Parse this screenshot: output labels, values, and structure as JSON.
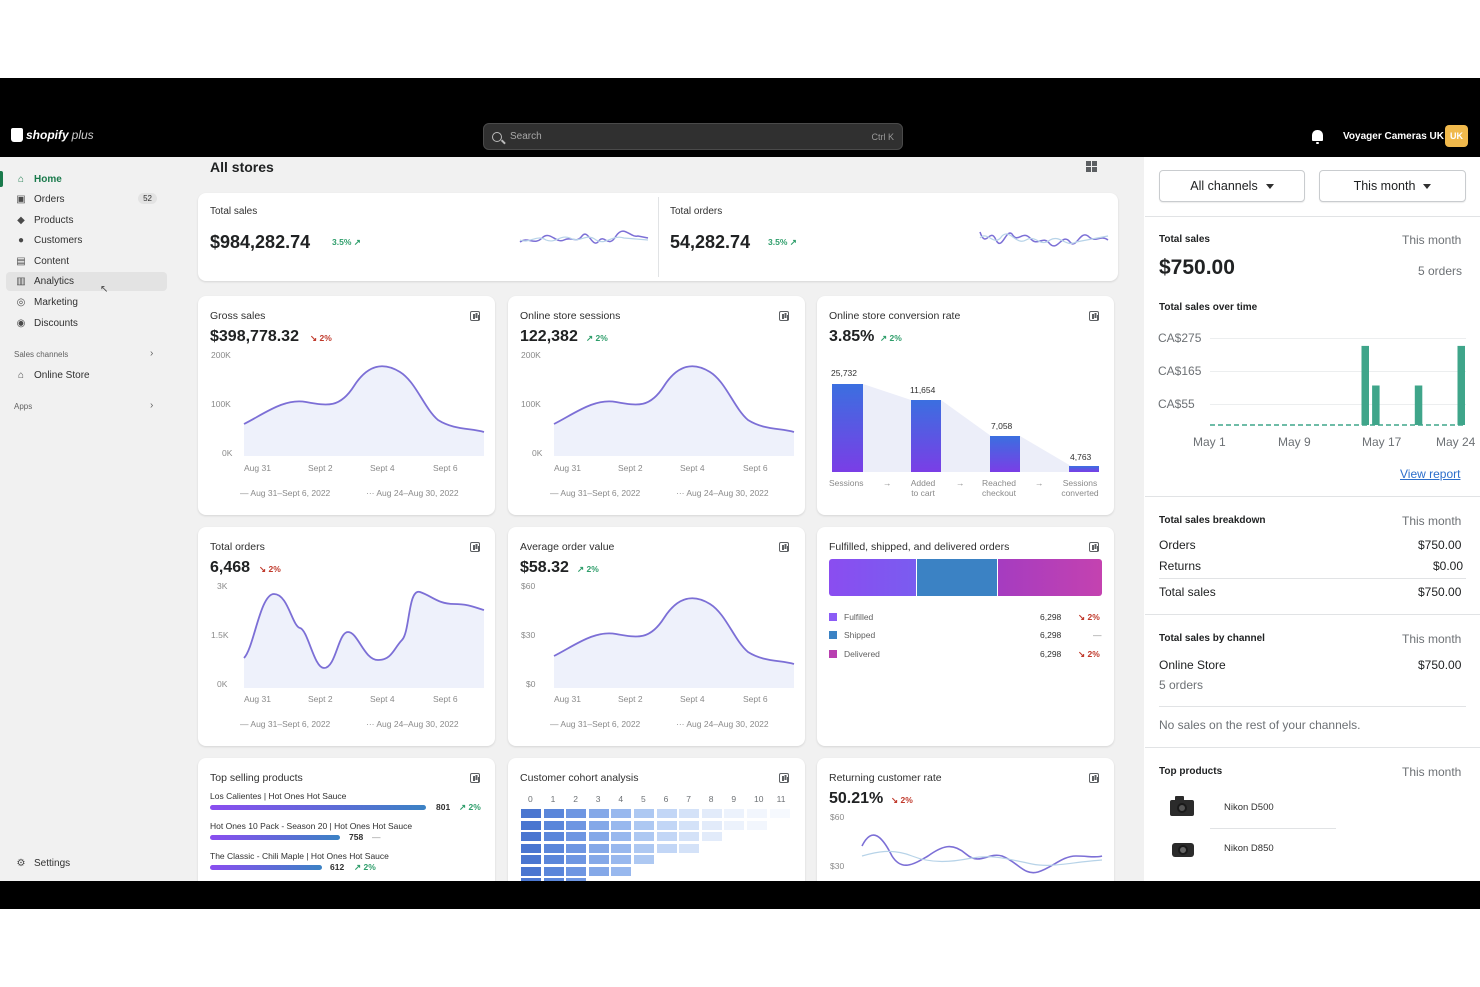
{
  "topbar": {
    "logo_text": "shopify",
    "logo_plus": "plus",
    "search_placeholder": "Search",
    "search_shortcut": "Ctrl K",
    "store_name": "Voyager Cameras UK",
    "store_badge": "UK"
  },
  "sidebar": {
    "items": [
      {
        "label": "Home",
        "icon": "home-icon"
      },
      {
        "label": "Orders",
        "icon": "orders-icon",
        "badge": "52"
      },
      {
        "label": "Products",
        "icon": "tag-icon"
      },
      {
        "label": "Customers",
        "icon": "person-icon"
      },
      {
        "label": "Content",
        "icon": "content-icon"
      },
      {
        "label": "Analytics",
        "icon": "analytics-icon"
      },
      {
        "label": "Marketing",
        "icon": "target-icon"
      },
      {
        "label": "Discounts",
        "icon": "discount-icon"
      }
    ],
    "sales_channels_label": "Sales channels",
    "online_store_label": "Online Store",
    "apps_label": "Apps",
    "settings_label": "Settings"
  },
  "main": {
    "page_title": "All stores",
    "total_sales": {
      "title": "Total sales",
      "value": "$984,282.74",
      "delta": "3.5% ↗"
    },
    "total_orders": {
      "title": "Total orders",
      "value": "54,282.74",
      "delta": "3.5% ↗"
    },
    "gross_sales": {
      "title": "Gross sales",
      "value": "$398,778.32",
      "delta": "↘ 2%",
      "yticks": [
        "200K",
        "100K",
        "0K"
      ]
    },
    "sessions": {
      "title": "Online store sessions",
      "value": "122,382",
      "delta": "↗ 2%",
      "yticks": [
        "200K",
        "100K",
        "0K"
      ]
    },
    "conversion": {
      "title": "Online store conversion rate",
      "value": "3.85%",
      "delta": "↗ 2%",
      "steps": [
        {
          "value": "25,732",
          "label1": "Sessions",
          "label2": ""
        },
        {
          "value": "11,654",
          "label1": "Added",
          "label2": "to cart"
        },
        {
          "value": "7,058",
          "label1": "Reached",
          "label2": "checkout"
        },
        {
          "value": "4,763",
          "label1": "Sessions",
          "label2": "converted"
        }
      ]
    },
    "orders_card": {
      "title": "Total orders",
      "value": "6,468",
      "delta": "↘ 2%",
      "yticks": [
        "3K",
        "1.5K",
        "0K"
      ]
    },
    "aov": {
      "title": "Average order value",
      "value": "$58.32",
      "delta": "↗ 2%",
      "yticks": [
        "$60",
        "$30",
        "$0"
      ]
    },
    "fulfilled": {
      "title": "Fulfilled, shipped, and delivered orders",
      "rows": [
        {
          "label": "Fulfilled",
          "value": "6,298",
          "delta": "↘ 2%",
          "color": "#8b5cf6"
        },
        {
          "label": "Shipped",
          "value": "6,298",
          "delta": "—",
          "color": "#3b82c4"
        },
        {
          "label": "Delivered",
          "value": "6,298",
          "delta": "↘ 2%",
          "color": "#b83fb0"
        }
      ]
    },
    "xticks": [
      "Aug 31",
      "Sept 2",
      "Sept 4",
      "Sept 6"
    ],
    "legend_current": "Aug 31–Sept 6, 2022",
    "legend_previous": "Aug 24–Aug 30, 2022",
    "top_products": {
      "title": "Top selling products",
      "items": [
        {
          "name": "Los Calientes | Hot Ones Hot Sauce",
          "value": "801",
          "delta": "↗ 2%",
          "fraction": 0.91
        },
        {
          "name": "Hot Ones 10 Pack - Season 20 | Hot Ones Hot Sauce",
          "value": "758",
          "delta": "—",
          "fraction": 0.6
        },
        {
          "name": "The Classic - Chili Maple | Hot Ones Hot Sauce",
          "value": "612",
          "delta": "↗ 2%",
          "fraction": 0.56
        }
      ]
    },
    "cohort": {
      "title": "Customer cohort analysis",
      "columns": [
        "0",
        "1",
        "2",
        "3",
        "4",
        "5",
        "6",
        "7",
        "8",
        "9",
        "10",
        "11"
      ]
    },
    "returning": {
      "title": "Returning customer rate",
      "value": "50.21%",
      "delta": "↘ 2%",
      "yticks": [
        "$60",
        "$30"
      ]
    }
  },
  "right_panel": {
    "channel_button": "All channels",
    "period_button": "This month",
    "total_sales_title": "Total sales",
    "total_sales_period": "This month",
    "total_sales_value": "$750.00",
    "total_sales_orders": "5 orders",
    "over_time_title": "Total sales over time",
    "yticks": [
      "CA$275",
      "CA$165",
      "CA$55"
    ],
    "xticks": [
      "May 1",
      "May 9",
      "May 17",
      "May 24"
    ],
    "view_report": "View report",
    "breakdown_title": "Total sales breakdown",
    "breakdown_period": "This month",
    "breakdown": [
      {
        "label": "Orders",
        "value": "$750.00"
      },
      {
        "label": "Returns",
        "value": "$0.00"
      },
      {
        "label": "Total sales",
        "value": "$750.00"
      }
    ],
    "by_channel_title": "Total sales by channel",
    "by_channel_period": "This month",
    "channel_name": "Online Store",
    "channel_value": "$750.00",
    "channel_orders": "5 orders",
    "no_sales_note": "No sales on the rest of your channels.",
    "top_products_title": "Top products",
    "top_products_period": "This month",
    "products": [
      {
        "name": "Nikon D500"
      },
      {
        "name": "Nikon D850"
      }
    ]
  },
  "colors": {
    "accent": "#1a7a4c",
    "bar_green": "#3fa58a",
    "line": "#7c6fd6",
    "funnel": "#6d4ee0"
  },
  "chart_data": {
    "type": "bar",
    "title": "Total sales over time",
    "x": [
      "May 1",
      "May 2",
      "May 3",
      "May 4",
      "May 5",
      "May 6",
      "May 7",
      "May 8",
      "May 9",
      "May 10",
      "May 11",
      "May 12",
      "May 13",
      "May 14",
      "May 15",
      "May 16",
      "May 17",
      "May 18",
      "May 19",
      "May 20",
      "May 21",
      "May 22",
      "May 23",
      "May 24"
    ],
    "values": [
      0,
      0,
      0,
      0,
      0,
      0,
      0,
      0,
      0,
      0,
      0,
      0,
      0,
      0,
      250,
      125,
      0,
      0,
      0,
      125,
      0,
      0,
      0,
      250
    ],
    "yticks": [
      "CA$275",
      "CA$165",
      "CA$55"
    ]
  }
}
